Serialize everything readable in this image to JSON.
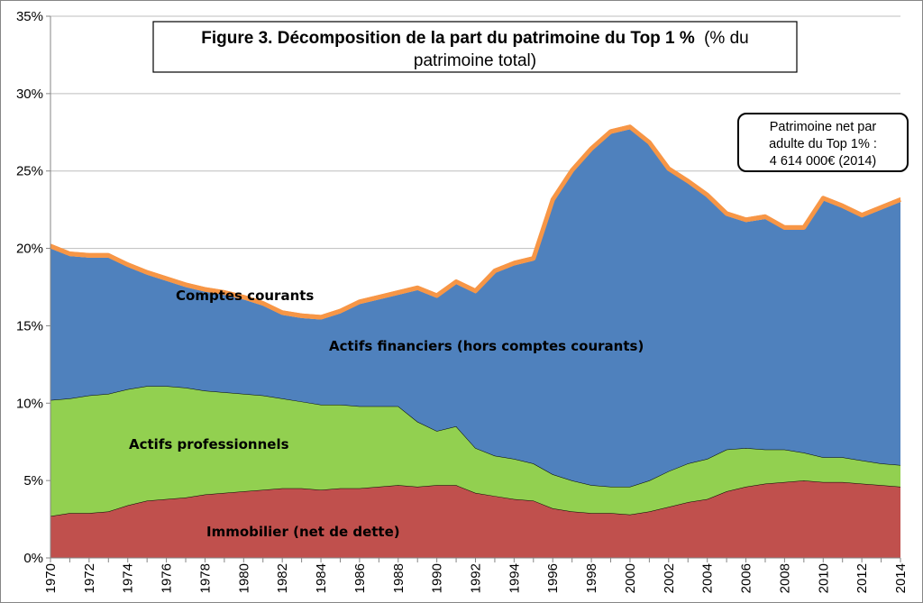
{
  "chart_data": {
    "type": "area",
    "stacked": true,
    "title_bold": "Figure 3. Décomposition de la part du patrimoine du Top 1 %",
    "title_rest_line1": "(% du",
    "title_line2": "patrimoine total)",
    "xlabel": "",
    "ylabel": "",
    "xlim": [
      1970,
      2014
    ],
    "ylim": [
      0,
      35
    ],
    "y_ticks": [
      "0%",
      "5%",
      "10%",
      "15%",
      "20%",
      "25%",
      "30%",
      "35%"
    ],
    "x_ticks": [
      "1970",
      "1972",
      "1974",
      "1976",
      "1978",
      "1980",
      "1982",
      "1984",
      "1986",
      "1988",
      "1990",
      "1992",
      "1994",
      "1996",
      "1998",
      "2000",
      "2002",
      "2004",
      "2006",
      "2008",
      "2010",
      "2012",
      "2014"
    ],
    "grid": true,
    "x": [
      1970,
      1971,
      1972,
      1973,
      1974,
      1975,
      1976,
      1977,
      1978,
      1979,
      1980,
      1981,
      1982,
      1983,
      1984,
      1985,
      1986,
      1987,
      1988,
      1989,
      1990,
      1991,
      1992,
      1993,
      1994,
      1995,
      1996,
      1997,
      1998,
      1999,
      2000,
      2001,
      2002,
      2003,
      2004,
      2005,
      2006,
      2007,
      2008,
      2009,
      2010,
      2011,
      2012,
      2013,
      2014
    ],
    "series": [
      {
        "name": "Immobilier (net de dette)",
        "color": "#C0504D",
        "values": [
          2.7,
          2.9,
          2.9,
          3.0,
          3.4,
          3.7,
          3.8,
          3.9,
          4.1,
          4.2,
          4.3,
          4.4,
          4.5,
          4.5,
          4.4,
          4.5,
          4.5,
          4.6,
          4.7,
          4.6,
          4.7,
          4.7,
          4.2,
          4.0,
          3.8,
          3.7,
          3.2,
          3.0,
          2.9,
          2.9,
          2.8,
          3.0,
          3.3,
          3.6,
          3.8,
          4.3,
          4.6,
          4.8,
          4.9,
          5.0,
          4.9,
          4.9,
          4.8,
          4.7,
          4.6
        ]
      },
      {
        "name": "Actifs professionnels",
        "color": "#92D050",
        "values": [
          7.5,
          7.4,
          7.6,
          7.6,
          7.5,
          7.4,
          7.3,
          7.1,
          6.7,
          6.5,
          6.3,
          6.1,
          5.8,
          5.6,
          5.5,
          5.4,
          5.3,
          5.2,
          5.1,
          4.2,
          3.5,
          3.8,
          2.9,
          2.6,
          2.6,
          2.4,
          2.2,
          2.0,
          1.8,
          1.7,
          1.8,
          2.0,
          2.3,
          2.5,
          2.6,
          2.7,
          2.5,
          2.2,
          2.1,
          1.8,
          1.6,
          1.6,
          1.5,
          1.4,
          1.4
        ]
      },
      {
        "name": "Actifs financiers (hors comptes courants)",
        "color": "#4F81BD",
        "values": [
          9.8,
          9.2,
          8.9,
          8.8,
          7.9,
          7.2,
          6.8,
          6.5,
          6.4,
          6.3,
          6.1,
          5.8,
          5.4,
          5.4,
          5.5,
          5.9,
          6.6,
          6.9,
          7.2,
          8.5,
          8.6,
          9.2,
          10.0,
          11.8,
          12.5,
          13.1,
          17.6,
          19.9,
          21.6,
          22.8,
          23.1,
          21.7,
          19.4,
          18.1,
          16.9,
          15.1,
          14.6,
          14.9,
          14.2,
          14.4,
          16.6,
          16.1,
          15.7,
          16.4,
          17.0
        ]
      },
      {
        "name": "Comptes courants",
        "color": "#F79646",
        "values": [
          0.3,
          0.3,
          0.3,
          0.3,
          0.3,
          0.3,
          0.3,
          0.3,
          0.3,
          0.3,
          0.3,
          0.3,
          0.3,
          0.3,
          0.3,
          0.3,
          0.3,
          0.3,
          0.3,
          0.3,
          0.3,
          0.3,
          0.3,
          0.3,
          0.3,
          0.3,
          0.3,
          0.3,
          0.3,
          0.3,
          0.3,
          0.3,
          0.3,
          0.3,
          0.3,
          0.3,
          0.3,
          0.3,
          0.3,
          0.3,
          0.3,
          0.3,
          0.3,
          0.3,
          0.3
        ]
      }
    ],
    "annotations": {
      "box_line1": "Patrimoine net par",
      "box_line2": "adulte du Top 1% :",
      "box_line3": "4 614 000€ (2014)"
    }
  }
}
